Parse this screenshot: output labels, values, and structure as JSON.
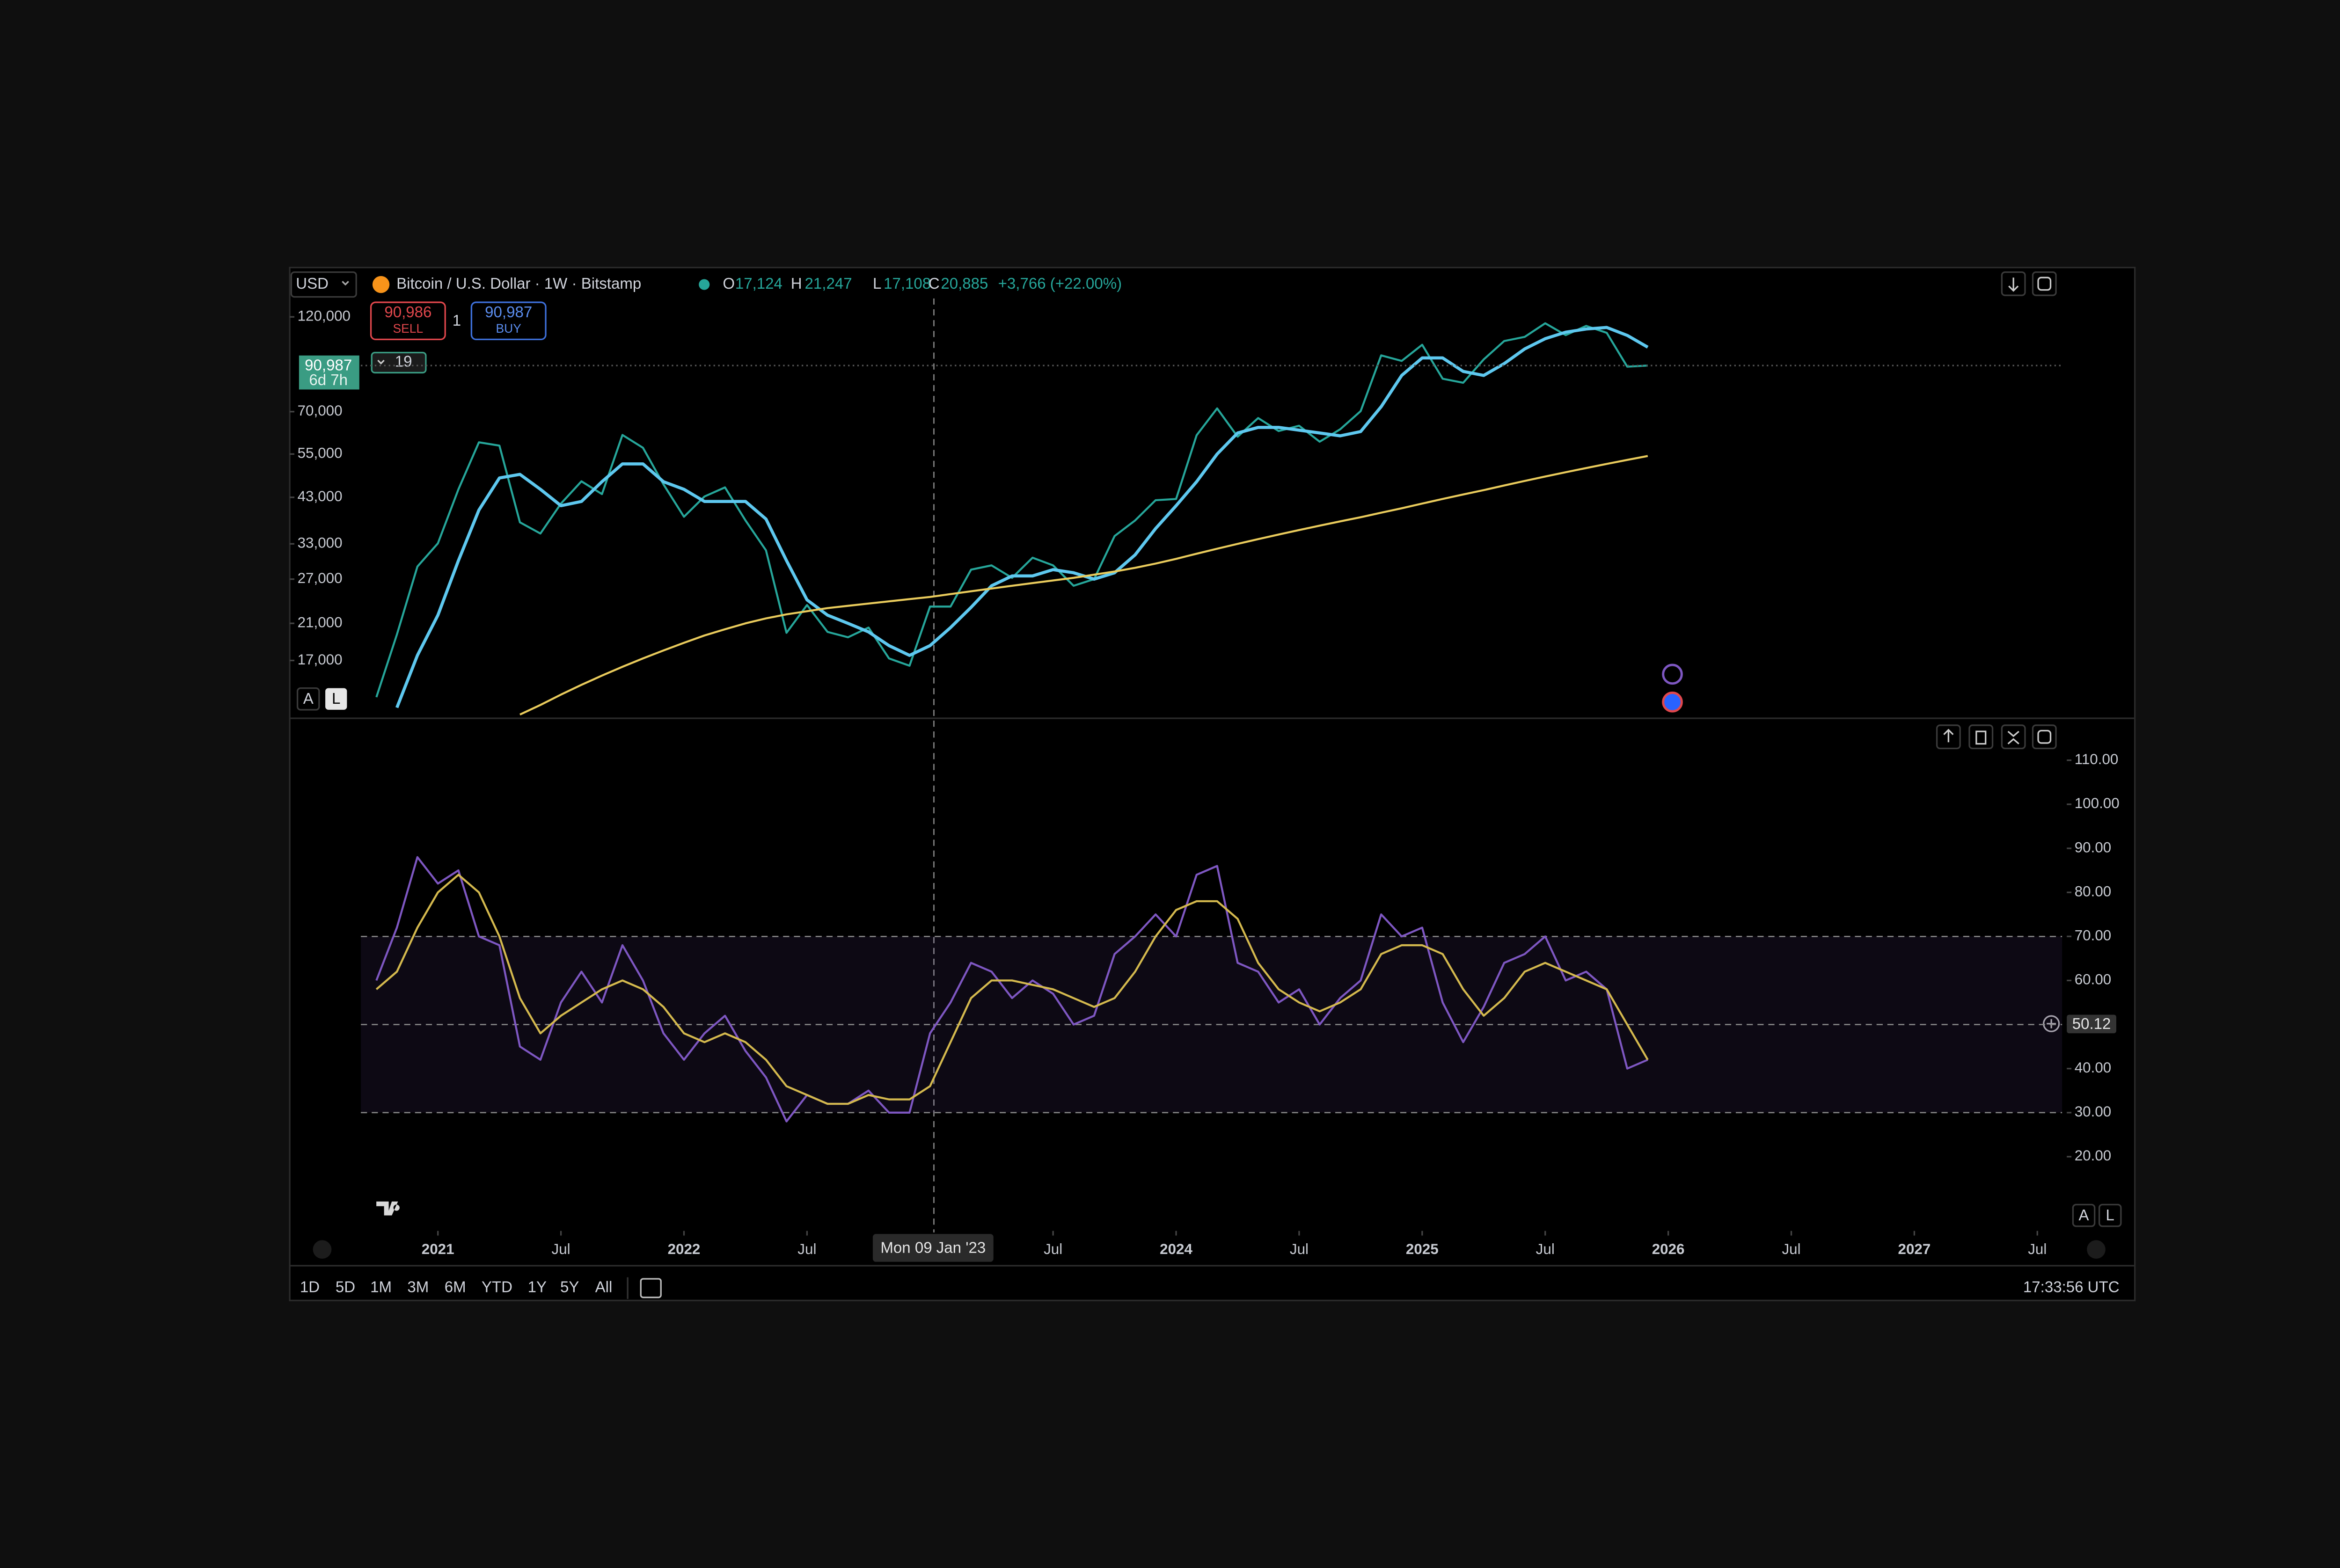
{
  "ui": {
    "currency": "USD",
    "symbol": "Bitcoin / U.S. Dollar · 1W · Bitstamp",
    "ohlc": [
      {
        "key": "O",
        "value": "17,124"
      },
      {
        "key": "H",
        "value": "21,247"
      },
      {
        "key": "L",
        "value": "17,108"
      },
      {
        "key": "C",
        "value": "20,885"
      }
    ],
    "change": "+3,766 (+22.00%)",
    "sell": {
      "price": "90,986",
      "label": "SELL"
    },
    "quantity": "1",
    "buy": {
      "price": "90,987",
      "label": "BUY"
    },
    "order_count": "19",
    "scale_buttons": [
      "A",
      "L"
    ],
    "crosshair_label": "Mon 09 Jan '23",
    "ranges": [
      "1D",
      "5D",
      "1M",
      "3M",
      "6M",
      "YTD",
      "1Y",
      "5Y",
      "All"
    ],
    "clock": "17:33:56 UTC"
  },
  "chart_data": [
    {
      "type": "line",
      "log_scale": true,
      "grid": false,
      "x": [
        "2020-10",
        "2020-11",
        "2020-12",
        "2021-01",
        "2021-02",
        "2021-03",
        "2021-04",
        "2021-05",
        "2021-06",
        "2021-07",
        "2021-08",
        "2021-09",
        "2021-10",
        "2021-11",
        "2021-12",
        "2022-01",
        "2022-02",
        "2022-03",
        "2022-04",
        "2022-05",
        "2022-06",
        "2022-07",
        "2022-08",
        "2022-09",
        "2022-10",
        "2022-11",
        "2022-12",
        "2023-01",
        "2023-02",
        "2023-03",
        "2023-04",
        "2023-05",
        "2023-06",
        "2023-07",
        "2023-08",
        "2023-09",
        "2023-10",
        "2023-11",
        "2023-12",
        "2024-01",
        "2024-02",
        "2024-03",
        "2024-04",
        "2024-05",
        "2024-06",
        "2024-07",
        "2024-08",
        "2024-09",
        "2024-10",
        "2024-11",
        "2024-12",
        "2025-01",
        "2025-02",
        "2025-03",
        "2025-04",
        "2025-05",
        "2025-06",
        "2025-07",
        "2025-08",
        "2025-09",
        "2025-10",
        "2025-11",
        "2025-12"
      ],
      "series": [
        {
          "color": "#26a69a",
          "values": [
            13800,
            19700,
            29000,
            33100,
            45000,
            58800,
            57700,
            37300,
            35000,
            41500,
            47100,
            43800,
            61300,
            57000,
            46300,
            38500,
            43200,
            45500,
            37700,
            31800,
            19900,
            23300,
            20000,
            19400,
            20500,
            17200,
            16500,
            23100,
            23100,
            28500,
            29200,
            27200,
            30500,
            29200,
            26000,
            27000,
            34500,
            37700,
            42300,
            42600,
            61200,
            71300,
            60700,
            67500,
            62700,
            64600,
            59000,
            63300,
            70200,
            96400,
            93400,
            102400,
            84400,
            82500,
            94200,
            104600,
            107100,
            115700,
            108200,
            114000,
            109600,
            90400,
            90987
          ]
        },
        {
          "color": "#5ec8ef",
          "values": [
            null,
            13000,
            17500,
            22000,
            30000,
            40000,
            48000,
            49000,
            45000,
            41000,
            42000,
            47000,
            52000,
            52000,
            47000,
            45000,
            42000,
            42000,
            42000,
            38000,
            30000,
            24000,
            22000,
            21000,
            20000,
            18500,
            17500,
            18500,
            20500,
            23000,
            26000,
            27500,
            27500,
            28500,
            28000,
            27000,
            28000,
            31000,
            36000,
            41000,
            47000,
            55000,
            62000,
            64000,
            64000,
            63000,
            62000,
            61000,
            62500,
            72000,
            86000,
            95000,
            95000,
            88000,
            86000,
            92000,
            100000,
            106000,
            110000,
            112000,
            113000,
            108000,
            101000
          ]
        },
        {
          "color": "#e9cb5c",
          "values": [
            null,
            null,
            null,
            null,
            null,
            null,
            null,
            12500,
            13200,
            14000,
            14800,
            15600,
            16400,
            17200,
            18000,
            18800,
            19600,
            20300,
            21000,
            21600,
            22100,
            22500,
            22900,
            23200,
            23500,
            23800,
            24100,
            24400,
            24800,
            25200,
            25600,
            26000,
            26400,
            26800,
            27200,
            27700,
            28200,
            28800,
            29500,
            30300,
            31200,
            32100,
            33000,
            33900,
            34800,
            35700,
            36600,
            37500,
            38400,
            39400,
            40400,
            41500,
            42600,
            43700,
            44800,
            46000,
            47200,
            48400,
            49600,
            50800,
            52000,
            53200,
            54400
          ]
        }
      ],
      "xlim": [
        "2020-06",
        "2027-11"
      ],
      "ylim": [
        12400,
        157500
      ],
      "yticks": [
        {
          "value": 120000,
          "label": "120,000"
        },
        {
          "value": 70000,
          "label": "70,000"
        },
        {
          "value": 55000,
          "label": "55,000"
        },
        {
          "value": 43000,
          "label": "43,000"
        },
        {
          "value": 33000,
          "label": "33,000"
        },
        {
          "value": 27000,
          "label": "27,000"
        },
        {
          "value": 21000,
          "label": "21,000"
        },
        {
          "value": 17000,
          "label": "17,000"
        }
      ],
      "current_price": {
        "value": 90987,
        "label": "90,987"
      },
      "countdown": "6d 7h"
    },
    {
      "type": "line",
      "log_scale": false,
      "grid": false,
      "x": [
        "2020-10",
        "2020-11",
        "2020-12",
        "2021-01",
        "2021-02",
        "2021-03",
        "2021-04",
        "2021-05",
        "2021-06",
        "2021-07",
        "2021-08",
        "2021-09",
        "2021-10",
        "2021-11",
        "2021-12",
        "2022-01",
        "2022-02",
        "2022-03",
        "2022-04",
        "2022-05",
        "2022-06",
        "2022-07",
        "2022-08",
        "2022-09",
        "2022-10",
        "2022-11",
        "2022-12",
        "2023-01",
        "2023-02",
        "2023-03",
        "2023-04",
        "2023-05",
        "2023-06",
        "2023-07",
        "2023-08",
        "2023-09",
        "2023-10",
        "2023-11",
        "2023-12",
        "2024-01",
        "2024-02",
        "2024-03",
        "2024-04",
        "2024-05",
        "2024-06",
        "2024-07",
        "2024-08",
        "2024-09",
        "2024-10",
        "2024-11",
        "2024-12",
        "2025-01",
        "2025-02",
        "2025-03",
        "2025-04",
        "2025-05",
        "2025-06",
        "2025-07",
        "2025-08",
        "2025-09",
        "2025-10",
        "2025-11",
        "2025-12"
      ],
      "series": [
        {
          "color": "#7e57c2",
          "values": [
            60,
            72,
            88,
            82,
            85,
            70,
            68,
            45,
            42,
            55,
            62,
            55,
            68,
            60,
            48,
            42,
            48,
            52,
            44,
            38,
            28,
            34,
            32,
            32,
            35,
            30,
            30,
            48,
            55,
            64,
            62,
            56,
            60,
            57,
            50,
            52,
            66,
            70,
            75,
            70,
            84,
            86,
            64,
            62,
            55,
            58,
            50,
            56,
            60,
            75,
            70,
            72,
            55,
            46,
            54,
            64,
            66,
            70,
            60,
            62,
            58,
            40,
            42
          ]
        },
        {
          "color": "#d4b94e",
          "values": [
            58,
            62,
            72,
            80,
            84,
            80,
            70,
            56,
            48,
            52,
            55,
            58,
            60,
            58,
            54,
            48,
            46,
            48,
            46,
            42,
            36,
            34,
            32,
            32,
            34,
            33,
            33,
            36,
            46,
            56,
            60,
            60,
            59,
            58,
            56,
            54,
            56,
            62,
            70,
            76,
            78,
            78,
            74,
            64,
            58,
            55,
            53,
            55,
            58,
            66,
            68,
            68,
            66,
            58,
            52,
            56,
            62,
            64,
            62,
            60,
            58,
            50,
            42
          ]
        }
      ],
      "xlim": [
        "2020-06",
        "2027-11"
      ],
      "ylim": [
        3.5,
        119
      ],
      "yticks": [
        {
          "value": 110,
          "label": "110.00"
        },
        {
          "value": 100,
          "label": "100.00"
        },
        {
          "value": 90,
          "label": "90.00"
        },
        {
          "value": 80,
          "label": "80.00"
        },
        {
          "value": 70,
          "label": "70.00"
        },
        {
          "value": 60,
          "label": "60.00"
        },
        {
          "value": 50,
          "label": "50.00"
        },
        {
          "value": 40,
          "label": "40.00"
        },
        {
          "value": 30,
          "label": "30.00"
        },
        {
          "value": 20,
          "label": "20.00"
        }
      ],
      "bands": [
        30,
        50,
        70
      ],
      "last_value": {
        "value": 50.12,
        "label": "50.12"
      },
      "xticks": [
        {
          "value": "2021-01",
          "label": "2021"
        },
        {
          "value": "2021-07",
          "label": "Jul"
        },
        {
          "value": "2022-01",
          "label": "2022"
        },
        {
          "value": "2022-07",
          "label": "Jul"
        },
        {
          "value": "2023-07",
          "label": "Jul"
        },
        {
          "value": "2024-01",
          "label": "2024"
        },
        {
          "value": "2024-07",
          "label": "Jul"
        },
        {
          "value": "2025-01",
          "label": "2025"
        },
        {
          "value": "2025-07",
          "label": "Jul"
        },
        {
          "value": "2026-01",
          "label": "2026"
        },
        {
          "value": "2026-07",
          "label": "Jul"
        },
        {
          "value": "2027-01",
          "label": "2027"
        },
        {
          "value": "2027-07",
          "label": "Jul"
        }
      ]
    }
  ]
}
